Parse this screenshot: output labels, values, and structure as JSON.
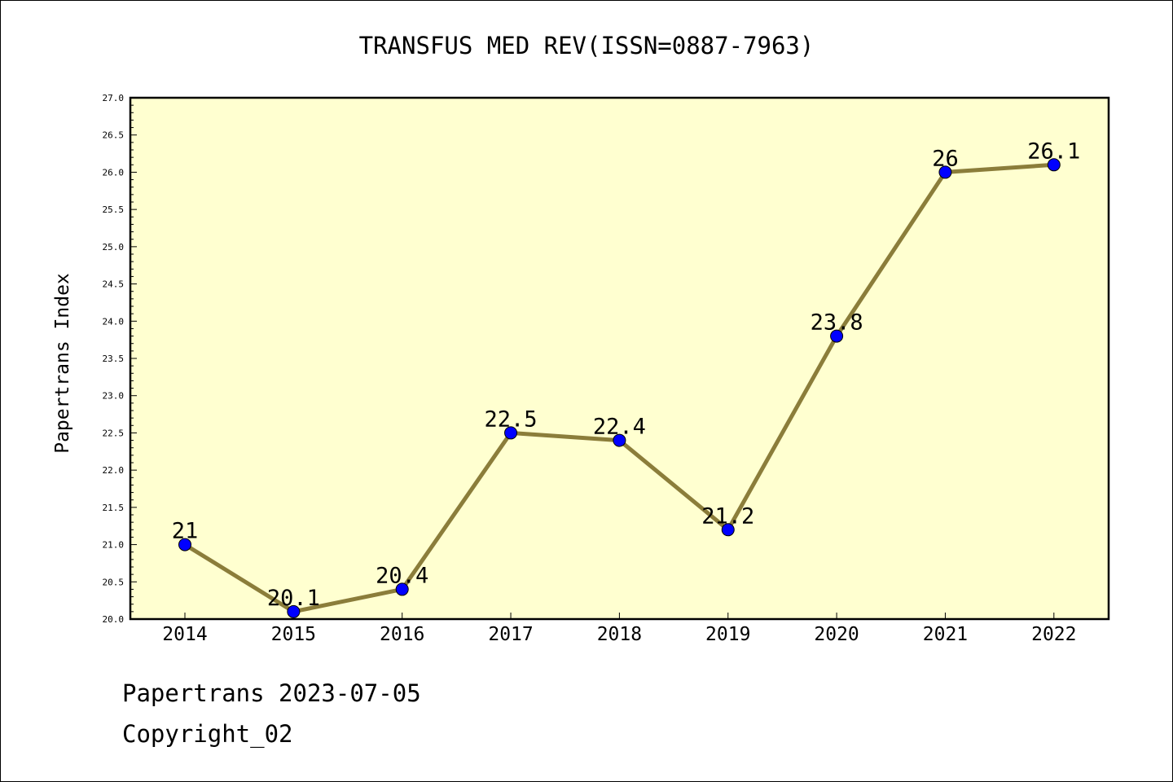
{
  "chart_data": {
    "type": "line",
    "title": "TRANSFUS MED REV(ISSN=0887-7963)",
    "xlabel": "",
    "ylabel": "Papertrans Index",
    "x": [
      "2014",
      "2015",
      "2016",
      "2017",
      "2018",
      "2019",
      "2020",
      "2021",
      "2022"
    ],
    "series": [
      {
        "values": [
          21,
          20.1,
          20.4,
          22.5,
          22.4,
          21.2,
          23.8,
          26,
          26.1
        ],
        "labels": [
          "21",
          "20.1",
          "20.4",
          "22.5",
          "22.4",
          "21.2",
          "23.8",
          "26",
          "26.1"
        ]
      }
    ],
    "ylim": [
      20.0,
      27.0
    ],
    "yticks": [
      "20.0",
      "20.5",
      "21.0",
      "21.5",
      "22.0",
      "22.5",
      "23.0",
      "23.5",
      "24.0",
      "24.5",
      "25.0",
      "25.5",
      "26.0",
      "26.5",
      "27.0"
    ],
    "grid": false,
    "legend": "none",
    "colors": {
      "plot_background": "#ffffd0",
      "line": "#8b7d3a",
      "marker": "#0000ff"
    }
  },
  "footer": {
    "line1": "Papertrans 2023-07-05",
    "line2": "Copyright_02"
  }
}
